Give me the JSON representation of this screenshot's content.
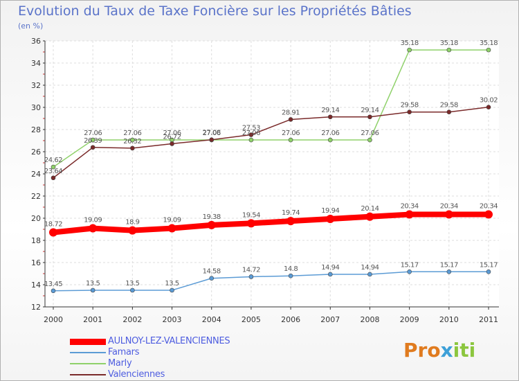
{
  "title": "Evolution du Taux de Taxe Foncière sur les Propriétés Bâties",
  "subtitle": "(en %)",
  "logo": {
    "part1": "Pro",
    "part2": "x",
    "part3": "iti"
  },
  "chart_data": {
    "type": "line",
    "title": "Evolution du Taux de Taxe Foncière sur les Propriétés Bâties",
    "ylabel": "(en %)",
    "xlabel": "",
    "ylim": [
      12,
      36
    ],
    "yticks": [
      12,
      14,
      16,
      18,
      20,
      22,
      24,
      26,
      28,
      30,
      32,
      34,
      36
    ],
    "grid": true,
    "legend_position": "bottom-left",
    "x": [
      "2000",
      "2001",
      "2002",
      "2003",
      "2004",
      "2005",
      "2006",
      "2007",
      "2008",
      "2009",
      "2010",
      "2011"
    ],
    "series": [
      {
        "name": "AULNOY-LEZ-VALENCIENNES",
        "color": "#ff0000",
        "values": [
          18.72,
          19.09,
          18.9,
          19.09,
          19.38,
          19.54,
          19.74,
          19.94,
          20.14,
          20.34,
          20.34,
          20.34
        ],
        "labels": [
          "18.72",
          "19.09",
          "18.9",
          "19.09",
          "19.38",
          "19.54",
          "19.74",
          "19.94",
          "20.14",
          "20.34",
          "20.34",
          "20.34"
        ]
      },
      {
        "name": "Famars",
        "color": "#5b9bd5",
        "values": [
          13.45,
          13.5,
          13.5,
          13.5,
          14.58,
          14.72,
          14.8,
          14.94,
          14.94,
          15.17,
          15.17,
          15.17
        ],
        "labels": [
          "13.45",
          "13.5",
          "13.5",
          "13.5",
          "14.58",
          "14.72",
          "14.8",
          "14.94",
          "14.94",
          "15.17",
          "15.17",
          "15.17"
        ]
      },
      {
        "name": "Marly",
        "color": "#8fd16a",
        "values": [
          24.62,
          27.06,
          27.06,
          27.06,
          27.06,
          27.06,
          27.06,
          27.06,
          27.06,
          35.18,
          35.18,
          35.18
        ],
        "labels": [
          "24.62",
          "27.06",
          "27.06",
          "27.06",
          "27.06",
          "27.06",
          "27.06",
          "27.06",
          "27.06",
          "35.18",
          "35.18",
          "35.18"
        ]
      },
      {
        "name": "Valenciennes",
        "color": "#7a2a2a",
        "values": [
          23.64,
          26.39,
          26.32,
          26.72,
          27.08,
          27.53,
          28.91,
          29.14,
          29.14,
          29.58,
          29.58,
          30.02
        ],
        "labels": [
          "23.64",
          "26.39",
          "26.32",
          "26.72",
          "27.08",
          "27.53",
          "28.91",
          "29.14",
          "29.14",
          "29.58",
          "29.58",
          "30.02"
        ]
      }
    ]
  }
}
